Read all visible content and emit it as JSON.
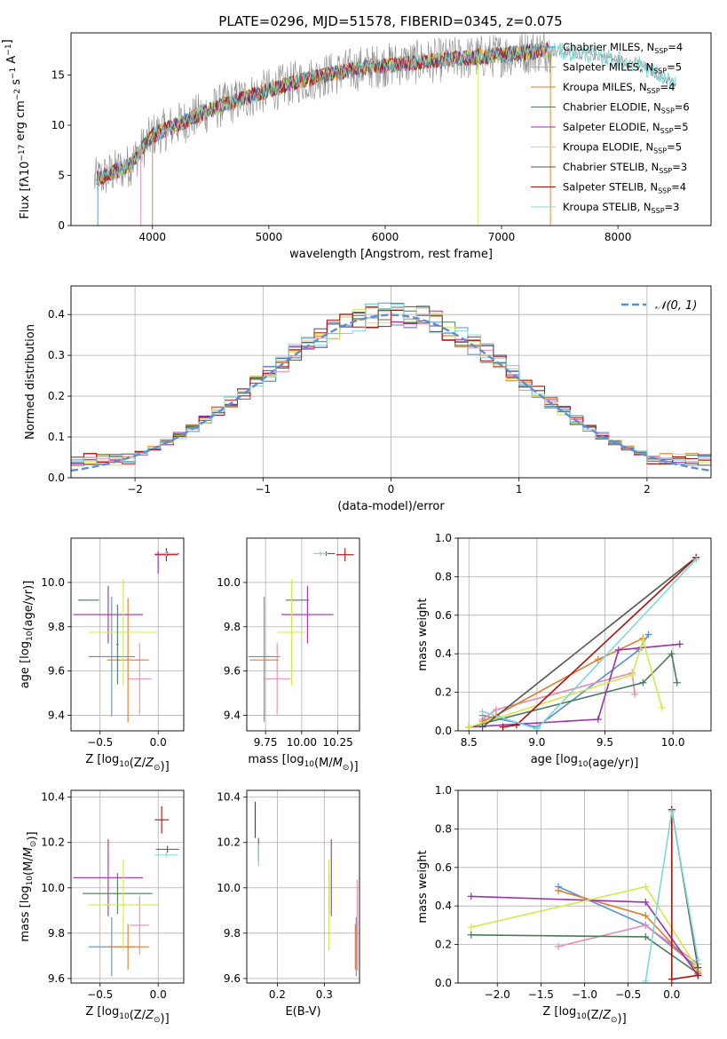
{
  "page_title": "PLATE=0296, MJD=51578, FIBERID=0345, z=0.075",
  "models": [
    {
      "name": "Chabrier MILES",
      "nssp": "4",
      "color": "#5b8dd9"
    },
    {
      "name": "Salpeter MILES",
      "nssp": "5",
      "color": "#e88bb4"
    },
    {
      "name": "Kroupa MILES",
      "nssp": "4",
      "color": "#e07b2a"
    },
    {
      "name": "Chabrier ELODIE",
      "nssp": "6",
      "color": "#4a7c59"
    },
    {
      "name": "Salpeter ELODIE",
      "nssp": "5",
      "color": "#9b30b0"
    },
    {
      "name": "Kroupa ELODIE",
      "nssp": "5",
      "color": "#d4e84a"
    },
    {
      "name": "Chabrier STELIB",
      "nssp": "3",
      "color": "#555555"
    },
    {
      "name": "Salpeter STELIB",
      "nssp": "4",
      "color": "#b01010"
    },
    {
      "name": "Kroupa STELIB",
      "nssp": "3",
      "color": "#7fd8d8"
    }
  ],
  "nssp_prefix": "N",
  "nssp_sub": "SSP",
  "chart_data": [
    {
      "id": "spectrum",
      "type": "line",
      "title": "PLATE=0296, MJD=51578, FIBERID=0345, z=0.075",
      "xlabel": "wavelength [Angstrom, rest frame]",
      "ylabel": "Flux [fλ10^-17 erg cm^-2 s^-1 A^-1]",
      "xlim": [
        3300,
        8800
      ],
      "ylim": [
        0,
        19.2
      ],
      "xticks": [
        4000,
        5000,
        6000,
        7000,
        8000
      ],
      "yticks": [
        0,
        5,
        10,
        15
      ],
      "grid": false,
      "legend": "right",
      "data_color": "#888888",
      "continuum": {
        "x": [
          3500,
          3800,
          4000,
          4300,
          4600,
          5000,
          5300,
          5700,
          6000,
          6500,
          7000,
          7400,
          7800,
          8200,
          8500
        ],
        "y": [
          4.5,
          6,
          9,
          10.5,
          12,
          13.5,
          14.5,
          15.5,
          16,
          16.5,
          17,
          17.5,
          17,
          16,
          14
        ]
      }
    },
    {
      "id": "residuals",
      "type": "histogram",
      "xlabel": "(data-model)/error",
      "ylabel": "Normed distribution",
      "xlim": [
        -2.5,
        2.5
      ],
      "ylim": [
        0,
        0.47
      ],
      "xticks": [
        -2,
        -1,
        0,
        1,
        2
      ],
      "yticks": [
        0.0,
        0.1,
        0.2,
        0.3,
        0.4
      ],
      "grid": true,
      "legend": "top-right",
      "normal_label": "𝒩(0, 1)",
      "normal_color": "#5b8dd9",
      "bin_width": 0.1
    },
    {
      "id": "age_vs_Z",
      "type": "errorbar",
      "xlabel": "Z [log10(Z/Z☉)]",
      "ylabel": "age [log10(age/yr)]",
      "xlim": [
        -0.75,
        0.22
      ],
      "ylim": [
        9.33,
        10.2
      ],
      "xticks": [
        -0.5,
        0.0
      ],
      "yticks": [
        9.4,
        9.6,
        9.8,
        10.0
      ],
      "grid": true,
      "points": [
        {
          "x": -0.4,
          "xerr": 0.2,
          "y": 9.665,
          "yerr": 0.27,
          "c": 0
        },
        {
          "x": -0.16,
          "xerr": 0.1,
          "y": 9.565,
          "yerr": 0.16,
          "c": 1
        },
        {
          "x": -0.26,
          "xerr": 0.18,
          "y": 9.65,
          "yerr": 0.28,
          "c": 2
        },
        {
          "x": -0.6,
          "xerr": 0.09,
          "y": 9.92,
          "yerr": 0.0,
          "c": 3
        },
        {
          "x": -0.43,
          "xerr": 0.3,
          "y": 9.855,
          "yerr": 0.13,
          "c": 4
        },
        {
          "x": -0.3,
          "xerr": 0.3,
          "y": 9.775,
          "yerr": 0.24,
          "c": 5
        },
        {
          "x": 0.08,
          "xerr": 0.1,
          "y": 10.13,
          "yerr": 0.01,
          "c": 6
        },
        {
          "x": 0.07,
          "xerr": 0.1,
          "y": 10.125,
          "yerr": 0.03,
          "c": 7
        },
        {
          "x": 0.07,
          "xerr": 0.1,
          "y": 10.13,
          "yerr": 0.01,
          "c": 8
        },
        {
          "x": -0.35,
          "xerr": 0.01,
          "y": 9.72,
          "yerr": 0.18,
          "c": 3
        },
        {
          "x": 0.0,
          "xerr": 0.0,
          "y": 10.09,
          "yerr": 0.05,
          "c": 4
        }
      ]
    },
    {
      "id": "age_vs_mass",
      "type": "errorbar",
      "xlabel": "mass [log10(M/M☉)]",
      "ylabel": "",
      "xlim": [
        9.62,
        10.4
      ],
      "ylim": [
        9.33,
        10.2
      ],
      "xticks": [
        9.75,
        10.0,
        10.25
      ],
      "yticks": [
        9.4,
        9.6,
        9.8,
        10.0
      ],
      "grid": true,
      "points": [
        {
          "x": 9.74,
          "xerr": 0.11,
          "y": 9.665,
          "yerr": 0.27,
          "c": 0
        },
        {
          "x": 9.83,
          "xerr": 0.09,
          "y": 9.565,
          "yerr": 0.16,
          "c": 1
        },
        {
          "x": 9.74,
          "xerr": 0.1,
          "y": 9.65,
          "yerr": 0.28,
          "c": 2
        },
        {
          "x": 9.97,
          "xerr": 0.08,
          "y": 9.92,
          "yerr": 0.0,
          "c": 3
        },
        {
          "x": 10.04,
          "xerr": 0.18,
          "y": 9.855,
          "yerr": 0.13,
          "c": 4
        },
        {
          "x": 9.93,
          "xerr": 0.1,
          "y": 9.775,
          "yerr": 0.24,
          "c": 5
        },
        {
          "x": 10.17,
          "xerr": 0.06,
          "y": 10.13,
          "yerr": 0.01,
          "c": 6
        },
        {
          "x": 10.3,
          "xerr": 0.06,
          "y": 10.125,
          "yerr": 0.03,
          "c": 7
        },
        {
          "x": 10.13,
          "xerr": 0.05,
          "y": 10.13,
          "yerr": 0.01,
          "c": 8
        }
      ]
    },
    {
      "id": "weight_vs_age",
      "type": "line",
      "xlabel": "age [log10(age/yr)]",
      "ylabel": "mass weight",
      "xlim": [
        8.42,
        10.28
      ],
      "ylim": [
        0.0,
        1.0
      ],
      "xticks": [
        8.5,
        9.0,
        9.5,
        10.0
      ],
      "yticks": [
        0.0,
        0.2,
        0.4,
        0.6,
        0.8,
        1.0
      ],
      "grid": true,
      "series": [
        {
          "c": 0,
          "x": [
            8.6,
            9.0,
            9.75,
            9.82
          ],
          "y": [
            0.08,
            0.02,
            0.42,
            0.5
          ]
        },
        {
          "c": 1,
          "x": [
            8.6,
            8.7,
            9.7,
            9.72
          ],
          "y": [
            0.06,
            0.11,
            0.3,
            0.19
          ]
        },
        {
          "c": 2,
          "x": [
            8.6,
            8.7,
            9.45,
            9.78
          ],
          "y": [
            0.05,
            0.08,
            0.37,
            0.48
          ]
        },
        {
          "c": 3,
          "x": [
            8.5,
            9.78,
            9.99,
            10.03
          ],
          "y": [
            0.02,
            0.25,
            0.4,
            0.25
          ]
        },
        {
          "c": 4,
          "x": [
            8.5,
            9.45,
            9.6,
            10.05
          ],
          "y": [
            0.02,
            0.06,
            0.42,
            0.45
          ]
        },
        {
          "c": 5,
          "x": [
            8.5,
            9.7,
            9.78,
            9.92
          ],
          "y": [
            0.02,
            0.29,
            0.47,
            0.12
          ]
        },
        {
          "c": 6,
          "x": [
            8.6,
            10.17
          ],
          "y": [
            0.02,
            0.9
          ]
        },
        {
          "c": 7,
          "x": [
            8.75,
            8.85,
            10.17
          ],
          "y": [
            0.02,
            0.03,
            0.9
          ]
        },
        {
          "c": 8,
          "x": [
            8.6,
            9.0,
            10.17
          ],
          "y": [
            0.1,
            0.01,
            0.89
          ]
        }
      ]
    },
    {
      "id": "mass_vs_Z",
      "type": "errorbar",
      "xlabel": "Z [log10(Z/Z☉)]",
      "ylabel": "mass [log10(M/M☉)]",
      "xlim": [
        -0.75,
        0.22
      ],
      "ylim": [
        9.58,
        10.43
      ],
      "xticks": [
        -0.5,
        0.0
      ],
      "yticks": [
        9.6,
        9.8,
        10.0,
        10.2,
        10.4
      ],
      "grid": true,
      "points": [
        {
          "x": -0.4,
          "xerr": 0.2,
          "y": 9.74,
          "yerr": 0.13,
          "c": 0
        },
        {
          "x": -0.16,
          "xerr": 0.08,
          "y": 9.835,
          "yerr": 0.13,
          "c": 1
        },
        {
          "x": -0.26,
          "xerr": 0.18,
          "y": 9.74,
          "yerr": 0.1,
          "c": 2
        },
        {
          "x": -0.35,
          "xerr": 0.3,
          "y": 9.975,
          "yerr": 0.09,
          "c": 3
        },
        {
          "x": -0.43,
          "xerr": 0.3,
          "y": 10.045,
          "yerr": 0.17,
          "c": 4
        },
        {
          "x": -0.3,
          "xerr": 0.3,
          "y": 9.925,
          "yerr": 0.2,
          "c": 5
        },
        {
          "x": 0.08,
          "xerr": 0.1,
          "y": 10.17,
          "yerr": 0.015,
          "c": 6
        },
        {
          "x": 0.03,
          "xerr": 0.06,
          "y": 10.3,
          "yerr": 0.06,
          "c": 7
        },
        {
          "x": 0.07,
          "xerr": 0.1,
          "y": 10.145,
          "yerr": 0.01,
          "c": 8
        }
      ]
    },
    {
      "id": "mass_vs_EBV",
      "type": "errorbar",
      "xlabel": "E(B-V)",
      "ylabel": "",
      "xlim": [
        0.135,
        0.375
      ],
      "ylim": [
        9.58,
        10.43
      ],
      "xticks": [
        0.2,
        0.3
      ],
      "yticks": [
        9.6,
        9.8,
        10.0,
        10.2,
        10.4
      ],
      "grid": true,
      "points": [
        {
          "x": 0.368,
          "xerr": 0.0,
          "y": 9.74,
          "yerr": 0.13,
          "c": 0
        },
        {
          "x": 0.37,
          "xerr": 0.0,
          "y": 9.835,
          "yerr": 0.2,
          "c": 1
        },
        {
          "x": 0.366,
          "xerr": 0.0,
          "y": 9.74,
          "yerr": 0.1,
          "c": 2
        },
        {
          "x": 0.31,
          "xerr": 0.0,
          "y": 9.975,
          "yerr": 0.09,
          "c": 3
        },
        {
          "x": 0.315,
          "xerr": 0.0,
          "y": 10.045,
          "yerr": 0.17,
          "c": 4
        },
        {
          "x": 0.31,
          "xerr": 0.0,
          "y": 9.925,
          "yerr": 0.2,
          "c": 5
        },
        {
          "x": 0.16,
          "xerr": 0.0,
          "y": 10.17,
          "yerr": 0.05,
          "c": 6
        },
        {
          "x": 0.153,
          "xerr": 0.0,
          "y": 10.3,
          "yerr": 0.08,
          "c": 7
        },
        {
          "x": 0.16,
          "xerr": 0.0,
          "y": 10.145,
          "yerr": 0.05,
          "c": 8
        }
      ]
    },
    {
      "id": "weight_vs_Z",
      "type": "line",
      "xlabel": "Z [log10(Z/Z☉)]",
      "ylabel": "mass weight",
      "xlim": [
        -2.45,
        0.45
      ],
      "ylim": [
        0.0,
        1.0
      ],
      "xticks": [
        -2.0,
        -1.5,
        -1.0,
        -0.5,
        0.0
      ],
      "yticks": [
        0.0,
        0.2,
        0.4,
        0.6,
        0.8,
        1.0
      ],
      "grid": true,
      "series": [
        {
          "c": 0,
          "x": [
            -1.3,
            -0.3,
            0.3
          ],
          "y": [
            0.5,
            0.3,
            0.08
          ]
        },
        {
          "c": 1,
          "x": [
            -1.3,
            -0.3,
            0.3
          ],
          "y": [
            0.19,
            0.3,
            0.1
          ]
        },
        {
          "c": 2,
          "x": [
            -1.3,
            -0.3,
            0.3
          ],
          "y": [
            0.48,
            0.35,
            0.06
          ]
        },
        {
          "c": 3,
          "x": [
            -2.3,
            -0.3,
            0.3
          ],
          "y": [
            0.25,
            0.24,
            0.05
          ]
        },
        {
          "c": 4,
          "x": [
            -2.3,
            -0.3,
            0.3
          ],
          "y": [
            0.45,
            0.42,
            0.04
          ]
        },
        {
          "c": 5,
          "x": [
            -2.3,
            -0.3,
            0.3
          ],
          "y": [
            0.29,
            0.5,
            0.07
          ]
        },
        {
          "c": 6,
          "x": [
            0.0,
            0.3
          ],
          "y": [
            0.9,
            0.08
          ]
        },
        {
          "c": 7,
          "x": [
            0.0,
            0.0,
            0.3
          ],
          "y": [
            0.9,
            0.02,
            0.04
          ]
        },
        {
          "c": 8,
          "x": [
            -0.3,
            0.0,
            0.3
          ],
          "y": [
            0.01,
            0.89,
            0.12
          ]
        }
      ]
    }
  ]
}
